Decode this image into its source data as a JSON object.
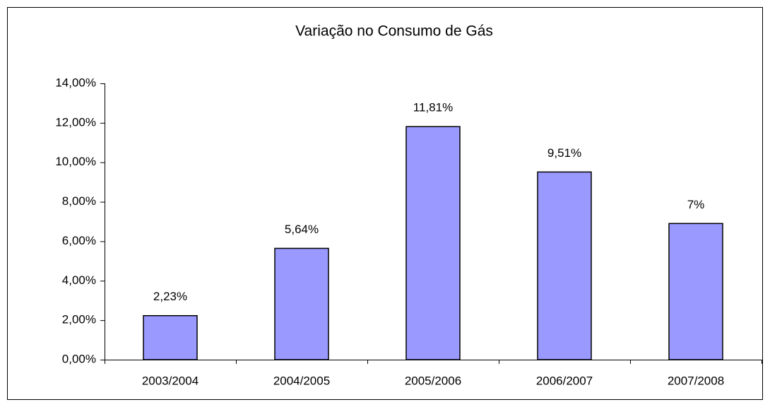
{
  "chart_data": {
    "type": "bar",
    "title": "Variação no Consumo de Gás",
    "categories": [
      "2003/2004",
      "2004/2005",
      "2005/2006",
      "2006/2007",
      "2007/2008"
    ],
    "values": [
      2.23,
      5.64,
      11.81,
      9.51,
      6.9
    ],
    "value_labels": [
      "2,23%",
      "5,64%",
      "11,81%",
      "9,51%",
      "7%"
    ],
    "color": "#9999ff",
    "ylim": [
      0,
      14
    ],
    "yticks": [
      {
        "value": 0,
        "label": "0,00%"
      },
      {
        "value": 2,
        "label": "2,00%"
      },
      {
        "value": 4,
        "label": "4,00%"
      },
      {
        "value": 6,
        "label": "6,00%"
      },
      {
        "value": 8,
        "label": "8,00%"
      },
      {
        "value": 10,
        "label": "10,00%"
      },
      {
        "value": 12,
        "label": "12,00%"
      },
      {
        "value": 14,
        "label": "14,00%"
      }
    ],
    "grid": false
  }
}
